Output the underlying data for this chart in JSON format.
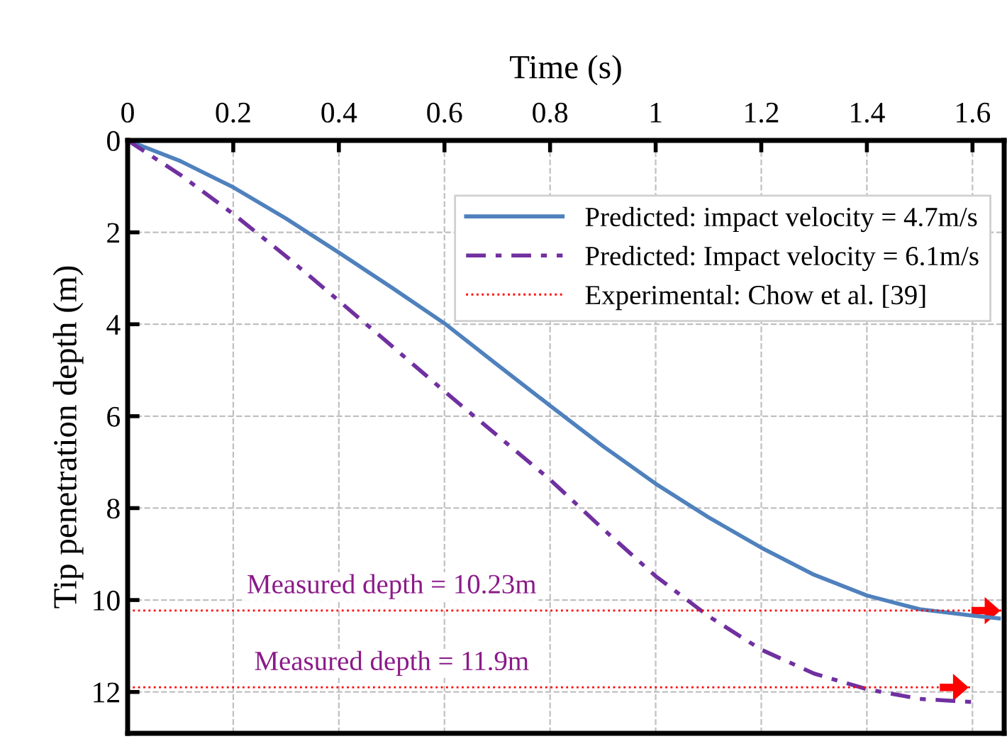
{
  "chart_data": {
    "type": "line",
    "xlabel": "Time (s)",
    "ylabel": "Tip penetration depth (m)",
    "xlim": [
      0,
      1.66
    ],
    "xticks": [
      0,
      0.2,
      0.4,
      0.6,
      0.8,
      1,
      1.2,
      1.4,
      1.6
    ],
    "ylim": [
      12.9,
      0
    ],
    "yticks": [
      0,
      2,
      4,
      6,
      8,
      10,
      12
    ],
    "grid": true,
    "legend": "top right",
    "series": [
      {
        "name": "Predicted: impact velocity = 4.7m/s",
        "color": "#4f81bd",
        "line_style": "solid",
        "x": [
          0,
          0.1,
          0.2,
          0.3,
          0.4,
          0.5,
          0.6,
          0.7,
          0.8,
          0.9,
          1.0,
          1.1,
          1.2,
          1.3,
          1.4,
          1.5,
          1.6,
          1.65
        ],
        "values": [
          0,
          0.45,
          1.02,
          1.7,
          2.44,
          3.2,
          3.98,
          4.88,
          5.77,
          6.65,
          7.47,
          8.2,
          8.86,
          9.45,
          9.9,
          10.2,
          10.34,
          10.4
        ]
      },
      {
        "name": "Predicted: Impact velocity = 6.1m/s",
        "color": "#7030a0",
        "line_style": "dashdot",
        "x": [
          0,
          0.1,
          0.2,
          0.3,
          0.4,
          0.5,
          0.6,
          0.7,
          0.8,
          0.9,
          1.0,
          1.1,
          1.2,
          1.3,
          1.4,
          1.5,
          1.6
        ],
        "values": [
          0,
          0.75,
          1.6,
          2.52,
          3.49,
          4.47,
          5.46,
          6.42,
          7.38,
          8.45,
          9.48,
          10.35,
          11.08,
          11.6,
          11.94,
          12.15,
          12.22
        ]
      },
      {
        "name": "Experimental: Chow et al. [39]",
        "color": "#ff0000",
        "line_style": "dotted",
        "x": [
          0,
          1.66,
          null,
          0,
          1.6
        ],
        "values": [
          10.23,
          10.23,
          null,
          11.9,
          11.9
        ]
      }
    ],
    "annotations": [
      {
        "text": "Measured depth = 10.23m",
        "x": 0.5,
        "y": 10.23
      },
      {
        "text": "Measured depth = 11.9m",
        "x": 0.5,
        "y": 11.9
      }
    ]
  }
}
